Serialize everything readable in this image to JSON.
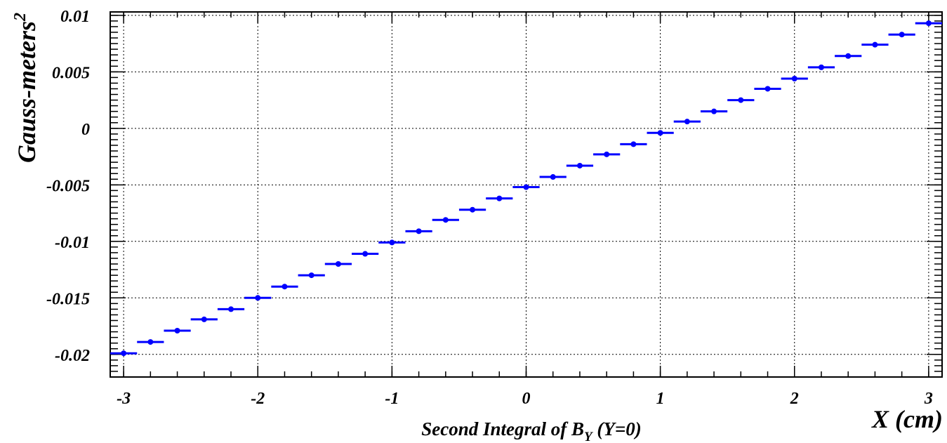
{
  "chart_data": {
    "type": "scatter",
    "style": "histogram-bins-with-markers",
    "title": "",
    "xlabel": "X (cm)",
    "subtitle_main": "Second Integral of B",
    "subtitle_sub": "Y",
    "subtitle_tail": " (Y=0)",
    "ylabel_main": "Gauss-meters",
    "ylabel_sup": "2",
    "xlim": [
      -3.1,
      3.1
    ],
    "ylim": [
      -0.022,
      0.0103
    ],
    "grid": true,
    "colors": {
      "series": "#0000ff",
      "frame": "#000000",
      "grid": "#000000"
    },
    "x_ticks": [
      -3,
      -2,
      -1,
      0,
      1,
      2,
      3
    ],
    "x_tick_labels": [
      "-3",
      "-2",
      "-1",
      "0",
      "1",
      "2",
      "3"
    ],
    "y_ticks": [
      -0.02,
      -0.015,
      -0.01,
      -0.005,
      0,
      0.005,
      0.01
    ],
    "y_tick_labels": [
      "-0.02",
      "-0.015",
      "-0.01",
      "-0.005",
      "0",
      "0.005",
      "0.01"
    ],
    "bin_width": 0.2,
    "series": [
      {
        "x": [
          -3.0,
          -2.8,
          -2.6,
          -2.4,
          -2.2,
          -2.0,
          -1.8,
          -1.6,
          -1.4,
          -1.2,
          -1.0,
          -0.8,
          -0.6,
          -0.4,
          -0.2,
          0.0,
          0.2,
          0.4,
          0.6,
          0.8,
          1.0,
          1.2,
          1.4,
          1.6,
          1.8,
          2.0,
          2.2,
          2.4,
          2.6,
          2.8,
          3.0
        ],
        "y": [
          -0.0199,
          -0.0189,
          -0.0179,
          -0.0169,
          -0.016,
          -0.015,
          -0.014,
          -0.013,
          -0.012,
          -0.0111,
          -0.0101,
          -0.0091,
          -0.0081,
          -0.0072,
          -0.0062,
          -0.0052,
          -0.0043,
          -0.0033,
          -0.0023,
          -0.0014,
          -0.0004,
          0.0006,
          0.0015,
          0.0025,
          0.0035,
          0.0044,
          0.0054,
          0.0064,
          0.0074,
          0.0083,
          0.0093
        ]
      }
    ]
  }
}
